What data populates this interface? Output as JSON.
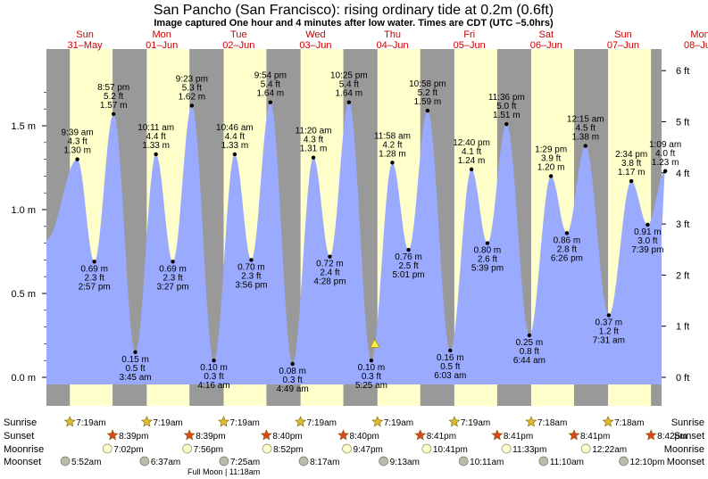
{
  "header": {
    "title": "San Pancho (San Francisco): rising  ordinary tide at 0.2m (0.6ft)",
    "subtitle": "Image captured One hour and 4 minutes after low water. Times are CDT (UTC –5.0hrs)"
  },
  "colors": {
    "night": "#999999",
    "day": "#ffffcc",
    "tide": "#99aaff",
    "day_label": "#cc0000",
    "sun_star": "#ddbb33",
    "sunset_star": "#dd4422",
    "moonrise": "#ffffcc",
    "moonset": "#bbbbaa"
  },
  "days": [
    {
      "dow": "Sun",
      "date": "31–May"
    },
    {
      "dow": "Mon",
      "date": "01–Jun"
    },
    {
      "dow": "Tue",
      "date": "02–Jun"
    },
    {
      "dow": "Wed",
      "date": "03–Jun"
    },
    {
      "dow": "Thu",
      "date": "04–Jun"
    },
    {
      "dow": "Fri",
      "date": "05–Jun"
    },
    {
      "dow": "Sat",
      "date": "06–Jun"
    },
    {
      "dow": "Sun",
      "date": "07–Jun"
    },
    {
      "dow": "Mon",
      "date": "08–Jun"
    }
  ],
  "chart_data": {
    "type": "area",
    "y_axis_left": {
      "unit": "m",
      "ticks": [
        "0.0 m",
        "0.5 m",
        "1.0 m",
        "1.5 m"
      ],
      "values": [
        0.0,
        0.5,
        1.0,
        1.5
      ]
    },
    "y_axis_right": {
      "unit": "ft",
      "ticks": [
        "0 ft",
        "1 ft",
        "2 ft",
        "3 ft",
        "4 ft",
        "5 ft",
        "6 ft"
      ],
      "values": [
        0,
        1,
        2,
        3,
        4,
        5,
        6
      ]
    },
    "start_time": "2020-05-31T00:00:00",
    "days_shown": 8,
    "edge_levels": {
      "start": 0.82,
      "end": 0.9
    },
    "extremes": [
      {
        "type": "high",
        "t": "2020-05-31T09:39",
        "time": "9:39 am",
        "m": 1.3,
        "m_label": "1.30 m",
        "ft_label": "4.3 ft"
      },
      {
        "type": "low",
        "t": "2020-05-31T14:57",
        "time": "2:57 pm",
        "m": 0.69,
        "m_label": "0.69 m",
        "ft_label": "2.3 ft"
      },
      {
        "type": "high",
        "t": "2020-05-31T20:57",
        "time": "8:57 pm",
        "m": 1.57,
        "m_label": "1.57 m",
        "ft_label": "5.2 ft"
      },
      {
        "type": "low",
        "t": "2020-06-01T03:45",
        "time": "3:45 am",
        "m": 0.15,
        "m_label": "0.15 m",
        "ft_label": "0.5 ft"
      },
      {
        "type": "high",
        "t": "2020-06-01T10:11",
        "time": "10:11 am",
        "m": 1.33,
        "m_label": "1.33 m",
        "ft_label": "4.4 ft"
      },
      {
        "type": "low",
        "t": "2020-06-01T15:27",
        "time": "3:27 pm",
        "m": 0.69,
        "m_label": "0.69 m",
        "ft_label": "2.3 ft"
      },
      {
        "type": "high",
        "t": "2020-06-01T21:23",
        "time": "9:23 pm",
        "m": 1.62,
        "m_label": "1.62 m",
        "ft_label": "5.3 ft"
      },
      {
        "type": "low",
        "t": "2020-06-02T04:16",
        "time": "4:16 am",
        "m": 0.1,
        "m_label": "0.10 m",
        "ft_label": "0.3 ft"
      },
      {
        "type": "high",
        "t": "2020-06-02T10:46",
        "time": "10:46 am",
        "m": 1.33,
        "m_label": "1.33 m",
        "ft_label": "4.4 ft"
      },
      {
        "type": "low",
        "t": "2020-06-02T15:56",
        "time": "3:56 pm",
        "m": 0.7,
        "m_label": "0.70 m",
        "ft_label": "2.3 ft"
      },
      {
        "type": "high",
        "t": "2020-06-02T21:54",
        "time": "9:54 pm",
        "m": 1.64,
        "m_label": "1.64 m",
        "ft_label": "5.4 ft"
      },
      {
        "type": "low",
        "t": "2020-06-03T04:49",
        "time": "4:49 am",
        "m": 0.08,
        "m_label": "0.08 m",
        "ft_label": "0.3 ft"
      },
      {
        "type": "high",
        "t": "2020-06-03T11:20",
        "time": "11:20 am",
        "m": 1.31,
        "m_label": "1.31 m",
        "ft_label": "4.3 ft"
      },
      {
        "type": "low",
        "t": "2020-06-03T16:28",
        "time": "4:28 pm",
        "m": 0.72,
        "m_label": "0.72 m",
        "ft_label": "2.4 ft"
      },
      {
        "type": "high",
        "t": "2020-06-03T22:25",
        "time": "10:25 pm",
        "m": 1.64,
        "m_label": "1.64 m",
        "ft_label": "5.4 ft"
      },
      {
        "type": "low",
        "t": "2020-06-04T05:25",
        "time": "5:25 am",
        "m": 0.1,
        "m_label": "0.10 m",
        "ft_label": "0.3 ft"
      },
      {
        "type": "high",
        "t": "2020-06-04T11:58",
        "time": "11:58 am",
        "m": 1.28,
        "m_label": "1.28 m",
        "ft_label": "4.2 ft"
      },
      {
        "type": "low",
        "t": "2020-06-04T17:01",
        "time": "5:01 pm",
        "m": 0.76,
        "m_label": "0.76 m",
        "ft_label": "2.5 ft"
      },
      {
        "type": "high",
        "t": "2020-06-04T22:58",
        "time": "10:58 pm",
        "m": 1.59,
        "m_label": "1.59 m",
        "ft_label": "5.2 ft"
      },
      {
        "type": "low",
        "t": "2020-06-05T06:03",
        "time": "6:03 am",
        "m": 0.16,
        "m_label": "0.16 m",
        "ft_label": "0.5 ft"
      },
      {
        "type": "high",
        "t": "2020-06-05T12:40",
        "time": "12:40 pm",
        "m": 1.24,
        "m_label": "1.24 m",
        "ft_label": "4.1 ft"
      },
      {
        "type": "low",
        "t": "2020-06-05T17:39",
        "time": "5:39 pm",
        "m": 0.8,
        "m_label": "0.80 m",
        "ft_label": "2.6 ft"
      },
      {
        "type": "high",
        "t": "2020-06-05T23:36",
        "time": "11:36 pm",
        "m": 1.51,
        "m_label": "1.51 m",
        "ft_label": "5.0 ft"
      },
      {
        "type": "low",
        "t": "2020-06-06T06:44",
        "time": "6:44 am",
        "m": 0.25,
        "m_label": "0.25 m",
        "ft_label": "0.8 ft"
      },
      {
        "type": "high",
        "t": "2020-06-06T13:29",
        "time": "1:29 pm",
        "m": 1.2,
        "m_label": "1.20 m",
        "ft_label": "3.9 ft"
      },
      {
        "type": "low",
        "t": "2020-06-06T18:26",
        "time": "6:26 pm",
        "m": 0.86,
        "m_label": "0.86 m",
        "ft_label": "2.8 ft"
      },
      {
        "type": "high",
        "t": "2020-06-07T00:15",
        "time": "12:15 am",
        "m": 1.38,
        "m_label": "1.38 m",
        "ft_label": "4.5 ft"
      },
      {
        "type": "low",
        "t": "2020-06-07T07:31",
        "time": "7:31 am",
        "m": 0.37,
        "m_label": "0.37 m",
        "ft_label": "1.2 ft"
      },
      {
        "type": "high",
        "t": "2020-06-07T14:34",
        "time": "2:34 pm",
        "m": 1.17,
        "m_label": "1.17 m",
        "ft_label": "3.8 ft"
      },
      {
        "type": "low",
        "t": "2020-06-07T19:39",
        "time": "7:39 pm",
        "m": 0.91,
        "m_label": "0.91 m",
        "ft_label": "3.0 ft"
      },
      {
        "type": "high",
        "t": "2020-06-08T01:09",
        "time": "1:09 am",
        "m": 1.23,
        "m_label": "1.23 m",
        "ft_label": "4.0 ft"
      }
    ],
    "current": {
      "t": "2020-06-04T06:29",
      "m": 0.2
    },
    "sun": [
      {
        "rise": "7:19am",
        "set": "8:39pm",
        "rise_t": "2020-05-31T07:19",
        "set_t": "2020-05-31T20:39"
      },
      {
        "rise": "7:19am",
        "set": "8:39pm",
        "rise_t": "2020-06-01T07:19",
        "set_t": "2020-06-01T20:39"
      },
      {
        "rise": "7:19am",
        "set": "8:40pm",
        "rise_t": "2020-06-02T07:19",
        "set_t": "2020-06-02T20:40"
      },
      {
        "rise": "7:19am",
        "set": "8:40pm",
        "rise_t": "2020-06-03T07:19",
        "set_t": "2020-06-03T20:40"
      },
      {
        "rise": "7:19am",
        "set": "8:41pm",
        "rise_t": "2020-06-04T07:19",
        "set_t": "2020-06-04T20:41"
      },
      {
        "rise": "7:19am",
        "set": "8:41pm",
        "rise_t": "2020-06-05T07:19",
        "set_t": "2020-06-05T20:41"
      },
      {
        "rise": "7:18am",
        "set": "8:41pm",
        "rise_t": "2020-06-06T07:18",
        "set_t": "2020-06-06T20:41"
      },
      {
        "rise": "7:18am",
        "set": "8:42pm",
        "rise_t": "2020-06-07T07:18",
        "set_t": "2020-06-07T20:42"
      }
    ],
    "moonrise": [
      {
        "time": "7:02pm",
        "t": "2020-05-31T19:02"
      },
      {
        "time": "7:56pm",
        "t": "2020-06-01T19:56"
      },
      {
        "time": "8:52pm",
        "t": "2020-06-02T20:52"
      },
      {
        "time": "9:47pm",
        "t": "2020-06-03T21:47"
      },
      {
        "time": "10:41pm",
        "t": "2020-06-04T22:41"
      },
      {
        "time": "11:33pm",
        "t": "2020-06-05T23:33"
      },
      {
        "time": "12:22am",
        "t": "2020-06-07T00:22"
      }
    ],
    "moonset": [
      {
        "time": "5:52am",
        "t": "2020-05-31T05:52"
      },
      {
        "time": "6:37am",
        "t": "2020-06-01T06:37"
      },
      {
        "time": "7:25am",
        "t": "2020-06-02T07:25"
      },
      {
        "time": "8:17am",
        "t": "2020-06-03T08:17"
      },
      {
        "time": "9:13am",
        "t": "2020-06-04T09:13"
      },
      {
        "time": "10:11am",
        "t": "2020-06-05T10:11"
      },
      {
        "time": "11:10am",
        "t": "2020-06-06T11:10"
      },
      {
        "time": "12:10pm",
        "t": "2020-06-07T12:10"
      }
    ],
    "moon_phase_note": "Full Moon | 11:18am",
    "row_labels": {
      "sunrise": "Sunrise",
      "sunset": "Sunset",
      "moonrise": "Moonrise",
      "moonset": "Moonset"
    }
  }
}
